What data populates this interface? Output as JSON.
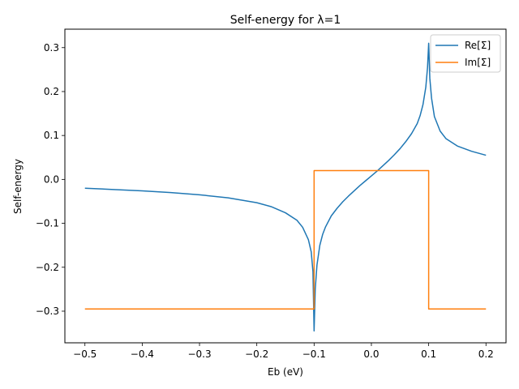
{
  "chart_data": {
    "type": "line",
    "title": "Self-energy for λ=1",
    "xlabel": "Eb (eV)",
    "ylabel": "Self-energy",
    "xlim": [
      -0.535,
      0.235
    ],
    "ylim": [
      -0.372,
      0.342
    ],
    "x_ticks": [
      -0.5,
      -0.4,
      -0.3,
      -0.2,
      -0.1,
      0.0,
      0.1,
      0.2
    ],
    "x_tick_labels": [
      "−0.5",
      "−0.4",
      "−0.3",
      "−0.2",
      "−0.1",
      "0.0",
      "0.1",
      "0.2"
    ],
    "y_ticks": [
      -0.3,
      -0.2,
      -0.1,
      0.0,
      0.1,
      0.2,
      0.3
    ],
    "y_tick_labels": [
      "−0.3",
      "−0.2",
      "−0.1",
      "0.0",
      "0.1",
      "0.2",
      "0.3"
    ],
    "grid": false,
    "legend_position": "top-right",
    "series": [
      {
        "name": "Re[Σ]",
        "color": "#1f77b4",
        "x": [
          -0.5,
          -0.45,
          -0.4,
          -0.35,
          -0.3,
          -0.25,
          -0.2,
          -0.175,
          -0.15,
          -0.13,
          -0.12,
          -0.11,
          -0.105,
          -0.102,
          -0.1,
          -0.098,
          -0.095,
          -0.09,
          -0.085,
          -0.08,
          -0.07,
          -0.06,
          -0.05,
          -0.04,
          -0.03,
          -0.02,
          -0.01,
          0.0,
          0.01,
          0.02,
          0.03,
          0.04,
          0.05,
          0.06,
          0.07,
          0.08,
          0.085,
          0.09,
          0.095,
          0.098,
          0.1,
          0.102,
          0.105,
          0.11,
          0.12,
          0.13,
          0.15,
          0.175,
          0.2
        ],
        "y": [
          -0.02,
          -0.023,
          -0.026,
          -0.03,
          -0.035,
          -0.042,
          -0.053,
          -0.062,
          -0.076,
          -0.093,
          -0.109,
          -0.137,
          -0.165,
          -0.21,
          -0.345,
          -0.25,
          -0.195,
          -0.15,
          -0.125,
          -0.108,
          -0.083,
          -0.066,
          -0.051,
          -0.038,
          -0.026,
          -0.014,
          -0.003,
          0.008,
          0.019,
          0.031,
          0.043,
          0.056,
          0.07,
          0.086,
          0.104,
          0.127,
          0.145,
          0.17,
          0.21,
          0.255,
          0.31,
          0.23,
          0.185,
          0.143,
          0.11,
          0.093,
          0.076,
          0.064,
          0.055
        ]
      },
      {
        "name": "Im[Σ]",
        "color": "#ff7f0e",
        "x": [
          -0.5,
          -0.1,
          -0.1,
          0.1,
          0.1,
          0.2
        ],
        "y": [
          -0.295,
          -0.295,
          0.02,
          0.02,
          -0.295,
          -0.295
        ]
      }
    ]
  }
}
